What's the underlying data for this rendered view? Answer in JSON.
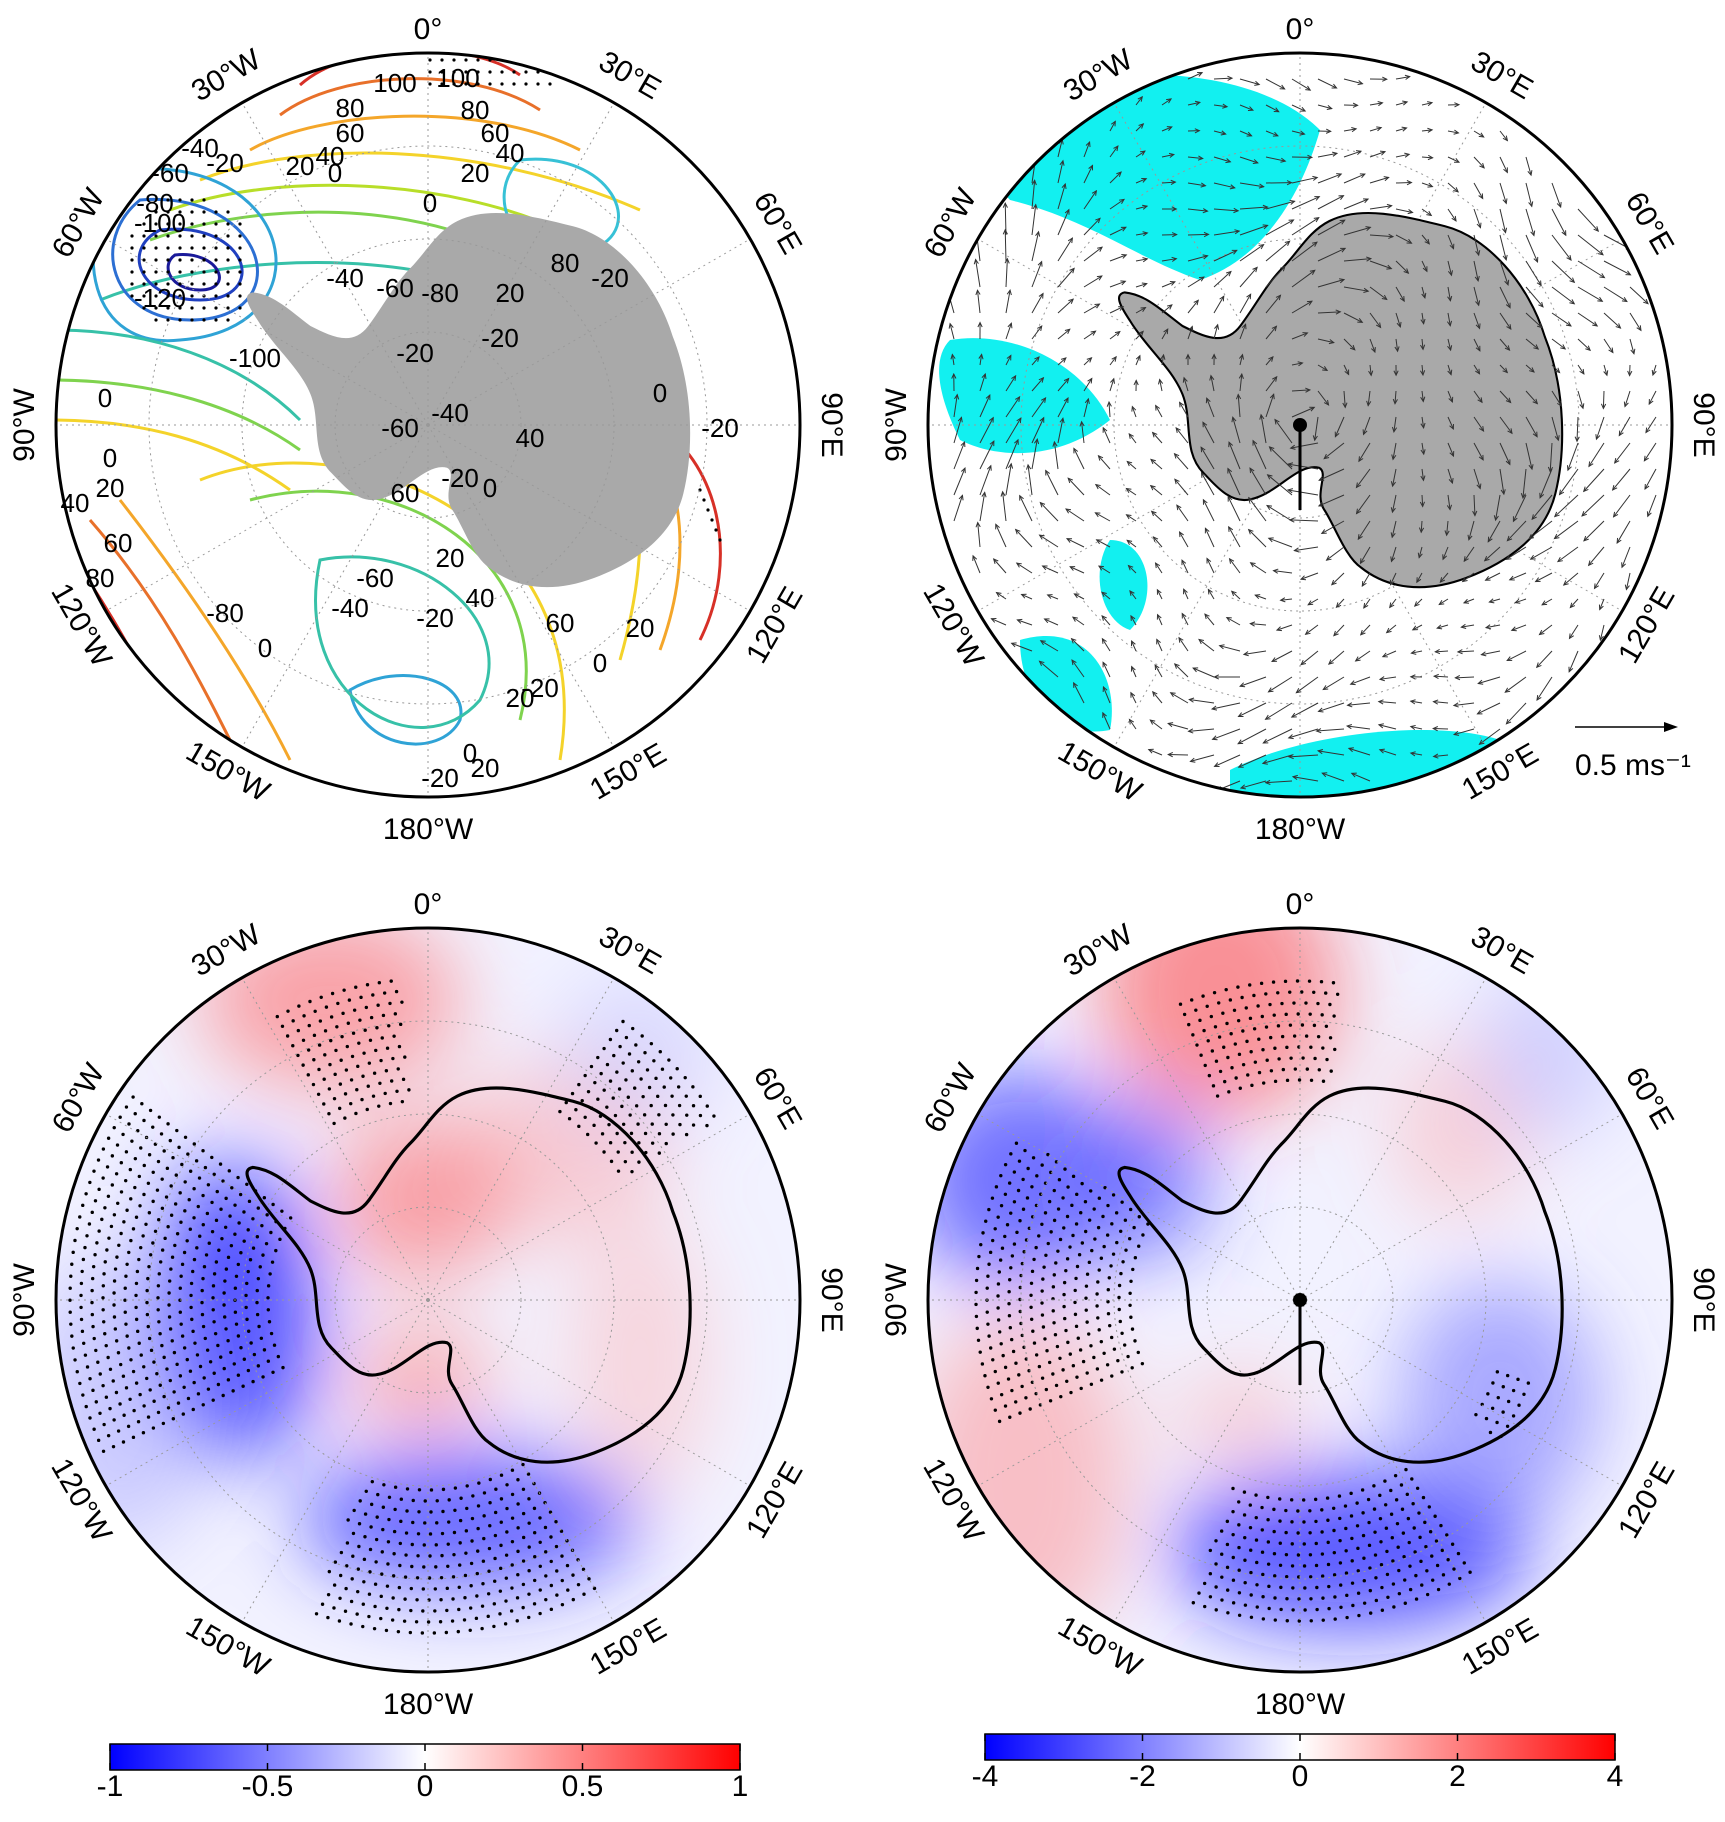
{
  "panels": [
    {
      "id": "a",
      "kind": "contour",
      "lon_labels": {
        "top": "0°",
        "bottom": "180°W",
        "left": "90°W",
        "right": "90°E",
        "ring": [
          "30°W",
          "60°W",
          "120°W",
          "150°W",
          "30°E",
          "60°E",
          "120°E",
          "150°E"
        ]
      },
      "contour_labels": [
        "100",
        "100",
        "80",
        "80",
        "60",
        "60",
        "40",
        "40",
        "20",
        "20",
        "0",
        "0",
        "-20",
        "-20",
        "-40",
        "-40",
        "-60",
        "-60",
        "-80",
        "-80",
        "-100",
        "-100",
        "-120",
        "-20",
        "0",
        "20",
        "40",
        "60",
        "80",
        "-20",
        "-40",
        "-60",
        "-20",
        "0",
        "20",
        "40",
        "60",
        "-60",
        "-40",
        "-20",
        "0",
        "20",
        "-20",
        "0",
        "20",
        "0",
        "-20",
        "20",
        "0",
        "-20",
        "0",
        "20",
        "40",
        "60",
        "80",
        "-80"
      ],
      "colors": {
        "land": "#a9a9a9",
        "ring": "#000000"
      }
    },
    {
      "id": "b",
      "kind": "vector",
      "lon_labels": {
        "top": "0°",
        "bottom": "180°W",
        "left": "90°W",
        "right": "90°E",
        "ring": [
          "30°W",
          "60°W",
          "120°W",
          "150°W",
          "30°E",
          "60°E",
          "120°E",
          "150°E"
        ]
      },
      "scale_label": "0.5 ms⁻¹",
      "colors": {
        "land": "#a9a9a9",
        "significance": "#12f0f0",
        "arrows": "#333333"
      }
    },
    {
      "id": "c",
      "kind": "shaded",
      "lon_labels": {
        "top": "0°",
        "bottom": "180°W",
        "left": "90°W",
        "right": "90°E",
        "ring": [
          "30°W",
          "60°W",
          "120°W",
          "150°W",
          "30°E",
          "60°E",
          "120°E",
          "150°E"
        ]
      },
      "colorbar": {
        "ticks": [
          "-1",
          "-0.5",
          "0",
          "0.5",
          "1"
        ],
        "min": -1,
        "max": 1,
        "low_color": "#0000ff",
        "mid_color": "#ffffff",
        "high_color": "#ff0000"
      }
    },
    {
      "id": "d",
      "kind": "shaded",
      "lon_labels": {
        "top": "0°",
        "bottom": "180°W",
        "left": "90°W",
        "right": "90°E",
        "ring": [
          "30°W",
          "60°W",
          "120°W",
          "150°W",
          "30°E",
          "60°E",
          "120°E",
          "150°E"
        ]
      },
      "colorbar": {
        "ticks": [
          "-4",
          "-2",
          "0",
          "2",
          "4"
        ],
        "min": -4,
        "max": 4,
        "low_color": "#0000ff",
        "mid_color": "#ffffff",
        "high_color": "#ff0000"
      }
    }
  ]
}
